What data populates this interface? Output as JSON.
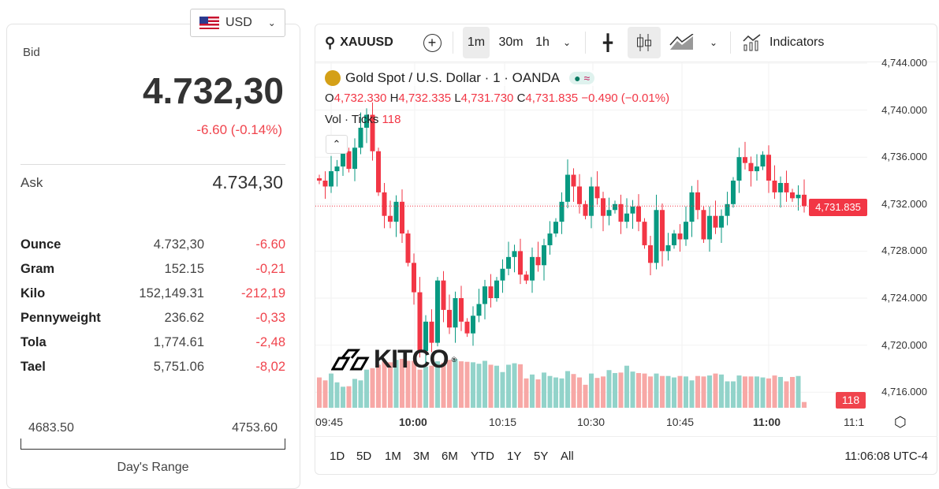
{
  "currency": {
    "label": "USD",
    "flag": "us-flag-icon"
  },
  "quote": {
    "bid_label": "Bid",
    "bid": "4.732,30",
    "change": "-6.60 (-0.14%)",
    "ask_label": "Ask",
    "ask": "4.734,30"
  },
  "units": [
    {
      "name": "Ounce",
      "value": "4.732,30",
      "change": "-6.60"
    },
    {
      "name": "Gram",
      "value": "152.15",
      "change": "-0,21"
    },
    {
      "name": "Kilo",
      "value": "152,149.31",
      "change": "-212,19"
    },
    {
      "name": "Pennyweight",
      "value": "236.62",
      "change": "-0,33"
    },
    {
      "name": "Tola",
      "value": "1,774.61",
      "change": "-2,48"
    },
    {
      "name": "Tael",
      "value": "5,751.06",
      "change": "-8,02"
    }
  ],
  "range": {
    "low": "4683.50",
    "high": "4753.60",
    "label": "Day's Range"
  },
  "toolbar": {
    "symbol": "XAUUSD",
    "intervals": [
      "1m",
      "30m",
      "1h"
    ],
    "indicators": "Indicators"
  },
  "legend": {
    "title": "Gold Spot / U.S. Dollar · 1 · OANDA",
    "o_label": "O",
    "o": "4,732.330",
    "h_label": "H",
    "h": "4,732.335",
    "l_label": "L",
    "l": "4,731.730",
    "c_label": "C",
    "c": "4,731.835",
    "chg": "−0.490 (−0.01%)",
    "vol_label": "Vol · Ticks",
    "vol": "118"
  },
  "price_axis": [
    "4,744.000",
    "4,740.000",
    "4,736.000",
    "4,732.000",
    "4,728.000",
    "4,724.000",
    "4,720.000",
    "4,716.000"
  ],
  "last_price": "4,731.835",
  "last_volume": "118",
  "time_axis": [
    "09:45",
    "10:00",
    "10:15",
    "10:30",
    "10:45",
    "11:00",
    "11:1"
  ],
  "ranges": [
    "1D",
    "5D",
    "1M",
    "3M",
    "6M",
    "YTD",
    "1Y",
    "5Y",
    "All"
  ],
  "clock": "11:06:08 UTC-4",
  "logo": "KITCO",
  "colors": {
    "up": "#089981",
    "down": "#f23645",
    "vol_up": "#92d3ca",
    "vol_down": "#f7a8a6",
    "accent": "#f23645"
  },
  "chart_data": {
    "type": "candlestick",
    "start_time": "09:44",
    "interval": "1m",
    "ylim": [
      4714.5,
      4744
    ],
    "closes": [
      4734.0,
      4733.5,
      4734.8,
      4735.2,
      4736.5,
      4735.0,
      4736.8,
      4738.5,
      4739.6,
      4736.5,
      4733.0,
      4731.0,
      4730.5,
      4732.2,
      4729.5,
      4727.0,
      4724.5,
      4719.5,
      4722.0,
      4720.2,
      4725.5,
      4723.0,
      4721.5,
      4724.0,
      4722.0,
      4721.0,
      4722.5,
      4723.5,
      4725.0,
      4724.0,
      4725.5,
      4726.5,
      4727.5,
      4728.0,
      4726.0,
      4725.5,
      4727.5,
      4726.8,
      4728.5,
      4729.5,
      4730.5,
      4732.2,
      4734.5,
      4733.5,
      4732.0,
      4731.0,
      4733.5,
      4732.5,
      4731.0,
      4731.5,
      4732.0,
      4730.5,
      4731.2,
      4731.8,
      4730.5,
      4728.5,
      4727.0,
      4731.5,
      4728.0,
      4728.5,
      4729.5,
      4729.0,
      4730.5,
      4733.0,
      4731.5,
      4729.0,
      4731.0,
      4730.0,
      4731.0,
      4732.0,
      4734.0,
      4736.0,
      4735.5,
      4734.8,
      4735.2,
      4736.2,
      4734.0,
      4733.0,
      4733.8,
      4733.0,
      4732.5,
      4732.8,
      4731.835
    ],
    "volumes": [
      620,
      560,
      700,
      520,
      430,
      440,
      590,
      560,
      780,
      810,
      880,
      950,
      930,
      980,
      1000,
      960,
      960,
      780,
      840,
      860,
      950,
      920,
      980,
      1000,
      950,
      940,
      930,
      900,
      960,
      880,
      860,
      730,
      880,
      910,
      890,
      600,
      680,
      580,
      720,
      650,
      620,
      600,
      750,
      690,
      620,
      470,
      700,
      610,
      640,
      770,
      710,
      720,
      860,
      740,
      710,
      700,
      640,
      700,
      650,
      650,
      620,
      650,
      640,
      560,
      650,
      640,
      660,
      700,
      680,
      540,
      540,
      660,
      640,
      640,
      640,
      620,
      600,
      660,
      630,
      540,
      630,
      650,
      118
    ]
  }
}
